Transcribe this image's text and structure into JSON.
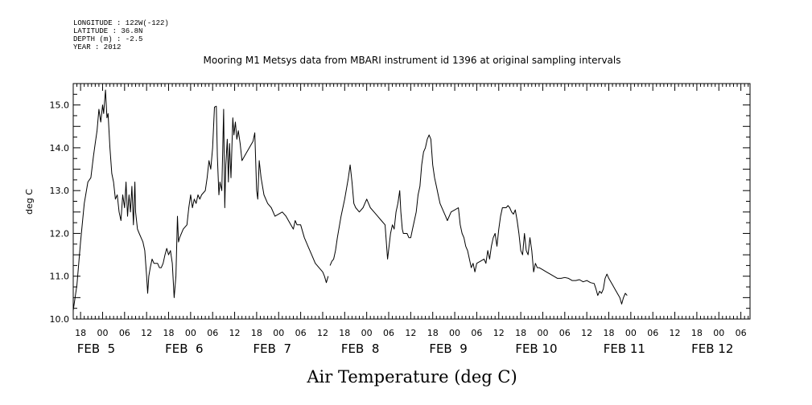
{
  "header": {
    "longitude": "LONGITUDE : 122W(-122)",
    "latitude": "LATITUDE : 36.8N",
    "depth": "DEPTH (m) : -2.5",
    "year": "YEAR : 2012"
  },
  "chart_data": {
    "type": "line",
    "title": "Mooring M1 Metsys data from MBARI instrument id 1396 at original sampling intervals",
    "xlabel": "Air Temperature (deg C)",
    "ylabel": "deg C",
    "ylim": [
      10.0,
      15.5
    ],
    "yticks": [
      "10.0",
      "11.0",
      "12.0",
      "13.0",
      "14.0",
      "15.0"
    ],
    "x_unit": "hours since FEB 4 00:00, 2012",
    "xlim": [
      16.0,
      200.5
    ],
    "hour_labels": [
      {
        "x": 18,
        "label": "18"
      },
      {
        "x": 24,
        "label": "00"
      },
      {
        "x": 30,
        "label": "06"
      },
      {
        "x": 36,
        "label": "12"
      },
      {
        "x": 42,
        "label": "18"
      },
      {
        "x": 48,
        "label": "00"
      },
      {
        "x": 54,
        "label": "06"
      },
      {
        "x": 60,
        "label": "12"
      },
      {
        "x": 66,
        "label": "18"
      },
      {
        "x": 72,
        "label": "00"
      },
      {
        "x": 78,
        "label": "06"
      },
      {
        "x": 84,
        "label": "12"
      },
      {
        "x": 90,
        "label": "18"
      },
      {
        "x": 96,
        "label": "00"
      },
      {
        "x": 102,
        "label": "06"
      },
      {
        "x": 108,
        "label": "12"
      },
      {
        "x": 114,
        "label": "18"
      },
      {
        "x": 120,
        "label": "00"
      },
      {
        "x": 126,
        "label": "06"
      },
      {
        "x": 132,
        "label": "12"
      },
      {
        "x": 138,
        "label": "18"
      },
      {
        "x": 144,
        "label": "00"
      },
      {
        "x": 150,
        "label": "06"
      },
      {
        "x": 156,
        "label": "12"
      },
      {
        "x": 162,
        "label": "18"
      },
      {
        "x": 168,
        "label": "00"
      },
      {
        "x": 174,
        "label": "06"
      },
      {
        "x": 180,
        "label": "12"
      },
      {
        "x": 186,
        "label": "18"
      },
      {
        "x": 192,
        "label": "00"
      },
      {
        "x": 198,
        "label": "06"
      }
    ],
    "day_labels": [
      {
        "x": 24,
        "label": "FEB  5"
      },
      {
        "x": 48,
        "label": "FEB  6"
      },
      {
        "x": 72,
        "label": "FEB  7"
      },
      {
        "x": 96,
        "label": "FEB  8"
      },
      {
        "x": 120,
        "label": "FEB  9"
      },
      {
        "x": 144,
        "label": "FEB 10"
      },
      {
        "x": 168,
        "label": "FEB 11"
      },
      {
        "x": 192,
        "label": "FEB 12"
      }
    ],
    "series": [
      {
        "points": [
          [
            16.0,
            10.2
          ],
          [
            17.0,
            10.8
          ],
          [
            18.0,
            11.8
          ],
          [
            19.0,
            12.7
          ],
          [
            20.0,
            13.2
          ],
          [
            20.8,
            13.3
          ],
          [
            21.5,
            13.8
          ],
          [
            22.0,
            14.1
          ],
          [
            22.5,
            14.4
          ],
          [
            23.0,
            14.9
          ],
          [
            23.5,
            14.6
          ],
          [
            24.0,
            15.0
          ],
          [
            24.3,
            14.8
          ],
          [
            24.8,
            15.35
          ],
          [
            25.2,
            14.7
          ],
          [
            25.5,
            14.8
          ],
          [
            26.0,
            14.0
          ],
          [
            26.5,
            13.4
          ],
          [
            27.0,
            13.2
          ],
          [
            27.5,
            12.8
          ],
          [
            28.0,
            12.9
          ],
          [
            28.5,
            12.5
          ],
          [
            29.0,
            12.3
          ],
          [
            29.5,
            12.9
          ],
          [
            30.0,
            12.6
          ],
          [
            30.4,
            13.2
          ],
          [
            30.8,
            12.4
          ],
          [
            31.2,
            12.9
          ],
          [
            31.6,
            12.5
          ],
          [
            32.0,
            13.1
          ],
          [
            32.4,
            12.2
          ],
          [
            32.8,
            13.2
          ],
          [
            33.0,
            12.5
          ],
          [
            33.5,
            12.1
          ],
          [
            34.0,
            12.0
          ],
          [
            34.5,
            11.9
          ],
          [
            35.0,
            11.8
          ],
          [
            35.5,
            11.6
          ],
          [
            36.0,
            11.0
          ],
          [
            36.3,
            10.6
          ],
          [
            36.6,
            11.0
          ],
          [
            37.0,
            11.2
          ],
          [
            37.5,
            11.4
          ],
          [
            38.0,
            11.3
          ],
          [
            39.0,
            11.3
          ],
          [
            39.5,
            11.2
          ],
          [
            40.0,
            11.2
          ],
          [
            40.5,
            11.3
          ],
          [
            41.0,
            11.5
          ],
          [
            41.5,
            11.65
          ],
          [
            42.0,
            11.5
          ],
          [
            42.5,
            11.6
          ],
          [
            43.0,
            11.3
          ],
          [
            43.5,
            10.5
          ],
          [
            44.0,
            11.0
          ],
          [
            44.4,
            12.4
          ],
          [
            44.7,
            11.8
          ],
          [
            45.0,
            11.9
          ],
          [
            46.0,
            12.1
          ],
          [
            47.0,
            12.2
          ],
          [
            47.5,
            12.6
          ],
          [
            48.0,
            12.9
          ],
          [
            48.5,
            12.6
          ],
          [
            49.0,
            12.8
          ],
          [
            49.5,
            12.7
          ],
          [
            50.0,
            12.9
          ],
          [
            50.5,
            12.8
          ],
          [
            51.0,
            12.9
          ],
          [
            52.0,
            13.0
          ],
          [
            52.5,
            13.3
          ],
          [
            53.0,
            13.7
          ],
          [
            53.5,
            13.5
          ],
          [
            54.0,
            14.0
          ],
          [
            54.5,
            14.95
          ],
          [
            55.0,
            14.97
          ],
          [
            55.3,
            13.8
          ],
          [
            55.7,
            12.9
          ],
          [
            56.0,
            13.2
          ],
          [
            56.5,
            13.0
          ],
          [
            57.0,
            14.9
          ],
          [
            57.3,
            12.6
          ],
          [
            57.6,
            13.6
          ],
          [
            58.0,
            14.2
          ],
          [
            58.3,
            13.2
          ],
          [
            58.6,
            14.1
          ],
          [
            59.0,
            13.3
          ],
          [
            59.5,
            14.7
          ],
          [
            59.8,
            14.3
          ],
          [
            60.2,
            14.6
          ],
          [
            60.6,
            14.2
          ],
          [
            61.0,
            14.4
          ],
          [
            61.5,
            14.1
          ],
          [
            62.0,
            13.7
          ],
          [
            63.0,
            13.85
          ],
          [
            64.0,
            14.0
          ],
          [
            65.0,
            14.15
          ],
          [
            65.5,
            14.35
          ],
          [
            66.0,
            13.0
          ],
          [
            66.3,
            12.8
          ],
          [
            66.7,
            13.7
          ],
          [
            67.2,
            13.3
          ],
          [
            68.0,
            12.9
          ],
          [
            69.0,
            12.7
          ],
          [
            70.0,
            12.6
          ],
          [
            71.0,
            12.4
          ],
          [
            73.0,
            12.5
          ],
          [
            74.0,
            12.4
          ],
          [
            75.0,
            12.25
          ],
          [
            76.0,
            12.1
          ],
          [
            76.5,
            12.3
          ],
          [
            77.0,
            12.2
          ],
          [
            78.0,
            12.2
          ],
          [
            79.0,
            11.9
          ],
          [
            80.0,
            11.7
          ],
          [
            81.0,
            11.5
          ],
          [
            82.0,
            11.3
          ],
          [
            83.0,
            11.2
          ],
          [
            84.0,
            11.1
          ],
          [
            84.5,
            11.0
          ],
          [
            85.0,
            10.85
          ],
          [
            85.5,
            11.0
          ]
        ]
      },
      {
        "points": [
          [
            86.0,
            11.25
          ],
          [
            86.5,
            11.35
          ],
          [
            87.0,
            11.4
          ],
          [
            87.5,
            11.6
          ],
          [
            88.0,
            11.9
          ],
          [
            89.0,
            12.4
          ],
          [
            90.0,
            12.8
          ],
          [
            91.0,
            13.3
          ],
          [
            91.5,
            13.6
          ],
          [
            92.0,
            13.2
          ],
          [
            92.5,
            12.7
          ],
          [
            93.0,
            12.6
          ],
          [
            94.0,
            12.5
          ],
          [
            95.0,
            12.6
          ],
          [
            96.0,
            12.8
          ],
          [
            97.0,
            12.6
          ],
          [
            98.0,
            12.5
          ],
          [
            99.0,
            12.4
          ],
          [
            100.0,
            12.3
          ],
          [
            101.0,
            12.2
          ],
          [
            101.7,
            11.4
          ],
          [
            102.5,
            12.0
          ],
          [
            103.0,
            12.2
          ],
          [
            103.5,
            12.1
          ],
          [
            104.0,
            12.5
          ],
          [
            104.5,
            12.7
          ],
          [
            105.0,
            13.0
          ],
          [
            105.3,
            12.5
          ],
          [
            105.7,
            12.1
          ],
          [
            106.0,
            12.0
          ],
          [
            107.0,
            12.0
          ],
          [
            107.5,
            11.9
          ],
          [
            108.0,
            11.9
          ],
          [
            108.5,
            12.1
          ],
          [
            109.0,
            12.3
          ],
          [
            109.5,
            12.5
          ],
          [
            110.0,
            12.9
          ],
          [
            110.5,
            13.1
          ],
          [
            111.0,
            13.6
          ],
          [
            111.5,
            13.9
          ],
          [
            112.0,
            14.0
          ],
          [
            112.5,
            14.2
          ],
          [
            113.0,
            14.3
          ],
          [
            113.5,
            14.2
          ],
          [
            114.0,
            13.6
          ],
          [
            114.5,
            13.3
          ],
          [
            115.0,
            13.1
          ],
          [
            115.5,
            12.9
          ],
          [
            116.0,
            12.7
          ],
          [
            117.0,
            12.5
          ],
          [
            117.5,
            12.4
          ],
          [
            118.0,
            12.3
          ],
          [
            119.0,
            12.5
          ],
          [
            120.0,
            12.55
          ],
          [
            121.0,
            12.6
          ],
          [
            121.5,
            12.2
          ],
          [
            122.0,
            12.0
          ],
          [
            122.5,
            11.9
          ],
          [
            123.0,
            11.7
          ],
          [
            123.5,
            11.6
          ],
          [
            124.0,
            11.4
          ],
          [
            124.5,
            11.2
          ],
          [
            125.0,
            11.3
          ],
          [
            125.5,
            11.1
          ],
          [
            126.0,
            11.3
          ],
          [
            127.0,
            11.35
          ],
          [
            128.0,
            11.4
          ],
          [
            128.5,
            11.3
          ],
          [
            129.0,
            11.6
          ],
          [
            129.5,
            11.4
          ],
          [
            130.0,
            11.7
          ],
          [
            130.5,
            11.9
          ],
          [
            131.0,
            12.0
          ],
          [
            131.5,
            11.7
          ],
          [
            132.0,
            12.1
          ],
          [
            132.5,
            12.4
          ],
          [
            133.0,
            12.6
          ],
          [
            134.0,
            12.6
          ],
          [
            134.5,
            12.65
          ],
          [
            135.0,
            12.6
          ],
          [
            135.5,
            12.5
          ],
          [
            136.0,
            12.45
          ],
          [
            136.5,
            12.55
          ],
          [
            137.0,
            12.3
          ],
          [
            137.5,
            12.0
          ],
          [
            138.0,
            11.6
          ],
          [
            138.5,
            11.5
          ],
          [
            139.0,
            12.0
          ],
          [
            139.5,
            11.6
          ],
          [
            140.0,
            11.5
          ],
          [
            140.5,
            11.9
          ],
          [
            141.0,
            11.6
          ],
          [
            141.5,
            11.1
          ],
          [
            142.0,
            11.3
          ],
          [
            142.5,
            11.2
          ],
          [
            143.0,
            11.2
          ],
          [
            144.0,
            11.15
          ],
          [
            145.0,
            11.1
          ],
          [
            146.0,
            11.05
          ],
          [
            147.0,
            11.0
          ],
          [
            148.0,
            10.95
          ],
          [
            149.0,
            10.95
          ],
          [
            150.0,
            10.97
          ],
          [
            151.0,
            10.95
          ],
          [
            152.0,
            10.9
          ],
          [
            153.0,
            10.9
          ],
          [
            154.0,
            10.92
          ],
          [
            155.0,
            10.87
          ],
          [
            156.0,
            10.9
          ],
          [
            157.0,
            10.85
          ],
          [
            158.0,
            10.83
          ],
          [
            158.5,
            10.7
          ],
          [
            159.0,
            10.55
          ],
          [
            159.5,
            10.65
          ],
          [
            160.0,
            10.6
          ],
          [
            160.5,
            10.7
          ],
          [
            161.0,
            10.95
          ],
          [
            161.5,
            11.05
          ],
          [
            162.0,
            10.95
          ],
          [
            163.0,
            10.8
          ],
          [
            164.0,
            10.65
          ],
          [
            165.0,
            10.5
          ],
          [
            165.5,
            10.35
          ],
          [
            166.0,
            10.5
          ],
          [
            166.5,
            10.6
          ],
          [
            167.0,
            10.55
          ]
        ]
      }
    ]
  }
}
